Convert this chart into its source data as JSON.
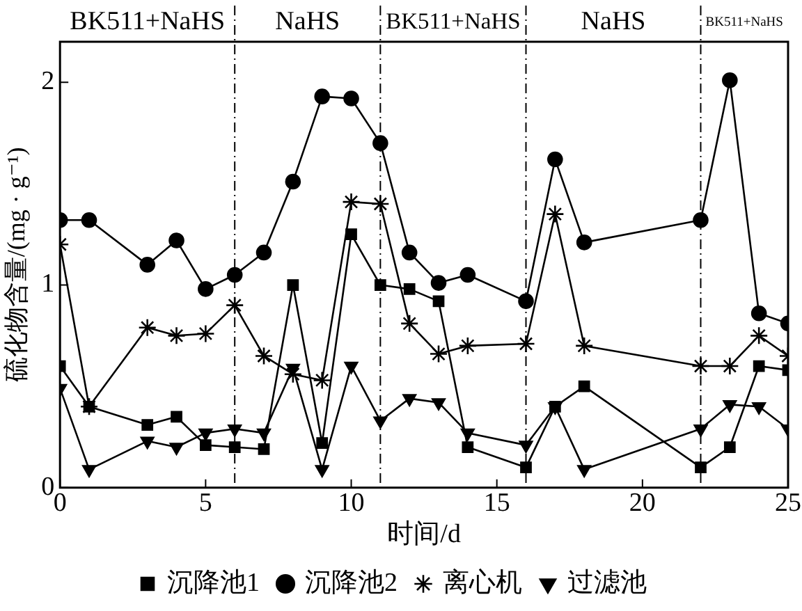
{
  "chart_data": {
    "type": "line",
    "xlabel": "时间/d",
    "ylabel": "硫化物含量/(mg · g⁻¹)",
    "x": [
      0,
      1,
      3,
      4,
      5,
      6,
      7,
      8,
      9,
      10,
      11,
      12,
      13,
      14,
      16,
      17,
      18,
      22,
      23,
      24,
      25
    ],
    "xlim": [
      0,
      25
    ],
    "xticks": [
      0,
      5,
      10,
      15,
      20,
      25
    ],
    "ylim": [
      0,
      2.2
    ],
    "yticks": [
      0,
      1,
      2
    ],
    "grid": false,
    "legend": "bottom",
    "line_style": "solid",
    "series": [
      {
        "name": "沉降池1",
        "color": "#000000",
        "marker": "square",
        "values": [
          0.6,
          0.4,
          0.31,
          0.35,
          0.21,
          0.2,
          0.19,
          1.0,
          0.22,
          1.25,
          1.0,
          0.98,
          0.92,
          0.2,
          0.1,
          0.4,
          0.5,
          0.1,
          0.2,
          0.6,
          0.58
        ]
      },
      {
        "name": "沉降池2",
        "color": "#000000",
        "marker": "circle",
        "values": [
          1.32,
          1.32,
          1.1,
          1.22,
          0.98,
          1.05,
          1.16,
          1.51,
          1.93,
          1.92,
          1.7,
          1.16,
          1.01,
          1.05,
          0.92,
          1.62,
          1.21,
          1.32,
          2.01,
          0.86,
          0.81
        ]
      },
      {
        "name": "离心机",
        "color": "#000000",
        "marker": "cross",
        "values": [
          1.2,
          0.4,
          0.79,
          0.75,
          0.76,
          0.9,
          0.65,
          0.56,
          0.53,
          1.41,
          1.4,
          0.81,
          0.66,
          0.7,
          0.71,
          1.35,
          0.7,
          0.6,
          0.6,
          0.75,
          0.65
        ]
      },
      {
        "name": "过滤池",
        "color": "#000000",
        "marker": "triangle",
        "values": [
          0.49,
          0.09,
          0.23,
          0.2,
          0.27,
          0.29,
          0.27,
          0.59,
          0.09,
          0.6,
          0.33,
          0.44,
          0.42,
          0.27,
          0.21,
          0.4,
          0.09,
          0.29,
          0.41,
          0.4,
          0.29
        ]
      }
    ],
    "ref_lines": [
      {
        "axis": "x",
        "value": 6,
        "line_style": "dashed"
      },
      {
        "axis": "x",
        "value": 11,
        "line_style": "dashed"
      },
      {
        "axis": "x",
        "value": 16,
        "line_style": "dashed"
      },
      {
        "axis": "x",
        "value": 22,
        "line_style": "dashed"
      }
    ],
    "annotations": [
      "BK511+NaHS",
      "NaHS",
      "BK511+NaHS",
      "NaHS",
      "BK511+NaHS"
    ]
  }
}
